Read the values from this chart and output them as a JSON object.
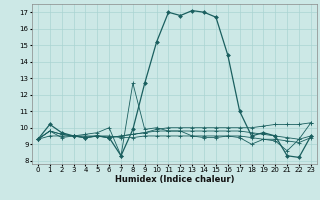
{
  "xlabel": "Humidex (Indice chaleur)",
  "bg_color": "#cce8e6",
  "grid_color": "#aad4d2",
  "line_color": "#1a5f5f",
  "xlim": [
    -0.5,
    23.5
  ],
  "ylim": [
    7.8,
    17.5
  ],
  "yticks": [
    8,
    9,
    10,
    11,
    12,
    13,
    14,
    15,
    16,
    17
  ],
  "xticks": [
    0,
    1,
    2,
    3,
    4,
    5,
    6,
    7,
    8,
    9,
    10,
    11,
    12,
    13,
    14,
    15,
    16,
    17,
    18,
    19,
    20,
    21,
    22,
    23
  ],
  "main_series": [
    9.3,
    10.2,
    9.7,
    9.5,
    9.4,
    9.5,
    9.4,
    8.3,
    9.9,
    12.7,
    15.2,
    17.0,
    16.8,
    17.1,
    17.0,
    16.7,
    14.4,
    11.0,
    9.5,
    9.7,
    9.5,
    8.3,
    8.2,
    9.5
  ],
  "line2": [
    9.3,
    9.8,
    9.6,
    9.5,
    9.4,
    9.5,
    9.4,
    9.5,
    9.6,
    9.7,
    9.9,
    10.0,
    10.0,
    10.0,
    10.0,
    10.0,
    10.0,
    10.0,
    10.0,
    10.1,
    10.2,
    10.2,
    10.2,
    10.3
  ],
  "line3": [
    9.3,
    9.8,
    9.6,
    9.5,
    9.4,
    9.5,
    9.4,
    9.5,
    9.6,
    9.7,
    9.8,
    9.8,
    9.8,
    9.8,
    9.8,
    9.8,
    9.8,
    9.8,
    9.7,
    9.6,
    9.5,
    9.4,
    9.3,
    9.5
  ],
  "line4": [
    9.3,
    9.5,
    9.5,
    9.5,
    9.5,
    9.5,
    9.5,
    9.4,
    9.4,
    9.5,
    9.5,
    9.5,
    9.5,
    9.5,
    9.5,
    9.5,
    9.5,
    9.5,
    9.4,
    9.3,
    9.3,
    9.2,
    9.1,
    9.4
  ],
  "line5": [
    9.3,
    9.8,
    9.4,
    9.5,
    9.6,
    9.7,
    10.0,
    8.3,
    12.7,
    9.9,
    10.0,
    9.8,
    9.8,
    9.5,
    9.4,
    9.4,
    9.5,
    9.4,
    9.0,
    9.3,
    9.2,
    8.6,
    9.3,
    10.3
  ]
}
